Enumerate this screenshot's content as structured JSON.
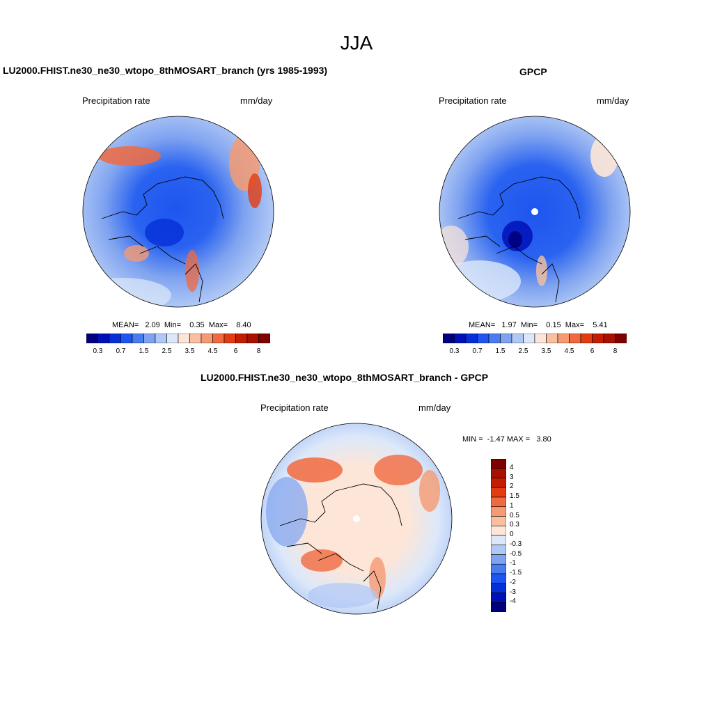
{
  "figure": {
    "title": "JJA"
  },
  "panels": [
    {
      "title": "LU2000.FHIST.ne30_ne30_wtopo_8thMOSART_branch (yrs 1985-1993)",
      "left_label": "Precipitation rate",
      "right_label": "mm/day",
      "stats": "MEAN=   2.09  Min=    0.35  Max=    8.40"
    },
    {
      "title": "GPCP",
      "left_label": "Precipitation rate",
      "right_label": "mm/day",
      "stats": "MEAN=   1.97  Min=    0.15  Max=    5.41"
    },
    {
      "title": "LU2000.FHIST.ne30_ne30_wtopo_8thMOSART_branch - GPCP",
      "left_label": "Precipitation rate",
      "right_label": "mm/day",
      "stats": "MIN =  -1.47 MAX =   3.80"
    }
  ],
  "colorbar_abs": {
    "colors": [
      "#00007f",
      "#0010b8",
      "#0530d8",
      "#1e55f0",
      "#4a7cf0",
      "#7fa3f0",
      "#b0c8f5",
      "#dce8fa",
      "#fde6d8",
      "#f9c0a0",
      "#f59a72",
      "#f06a40",
      "#e33c10",
      "#c41e00",
      "#a81000",
      "#7f0000"
    ],
    "labels": [
      "0.3",
      "0.7",
      "1.5",
      "2.5",
      "3.5",
      "4.5",
      "6",
      "8"
    ]
  },
  "colorbar_diff": {
    "colors": [
      "#00007f",
      "#0010b8",
      "#0530d8",
      "#1e55f0",
      "#4a7cf0",
      "#7fa3f0",
      "#b0c8f5",
      "#dce8fa",
      "#fde6d8",
      "#f9c0a0",
      "#f59a72",
      "#f06a40",
      "#e33c10",
      "#c41e00",
      "#a81000",
      "#7f0000"
    ],
    "labels": [
      "4",
      "3",
      "2",
      "1.5",
      "1",
      "0.5",
      "0.3",
      "0",
      "-0.3",
      "-0.5",
      "-1",
      "-1.5",
      "-2",
      "-3",
      "-4"
    ]
  }
}
